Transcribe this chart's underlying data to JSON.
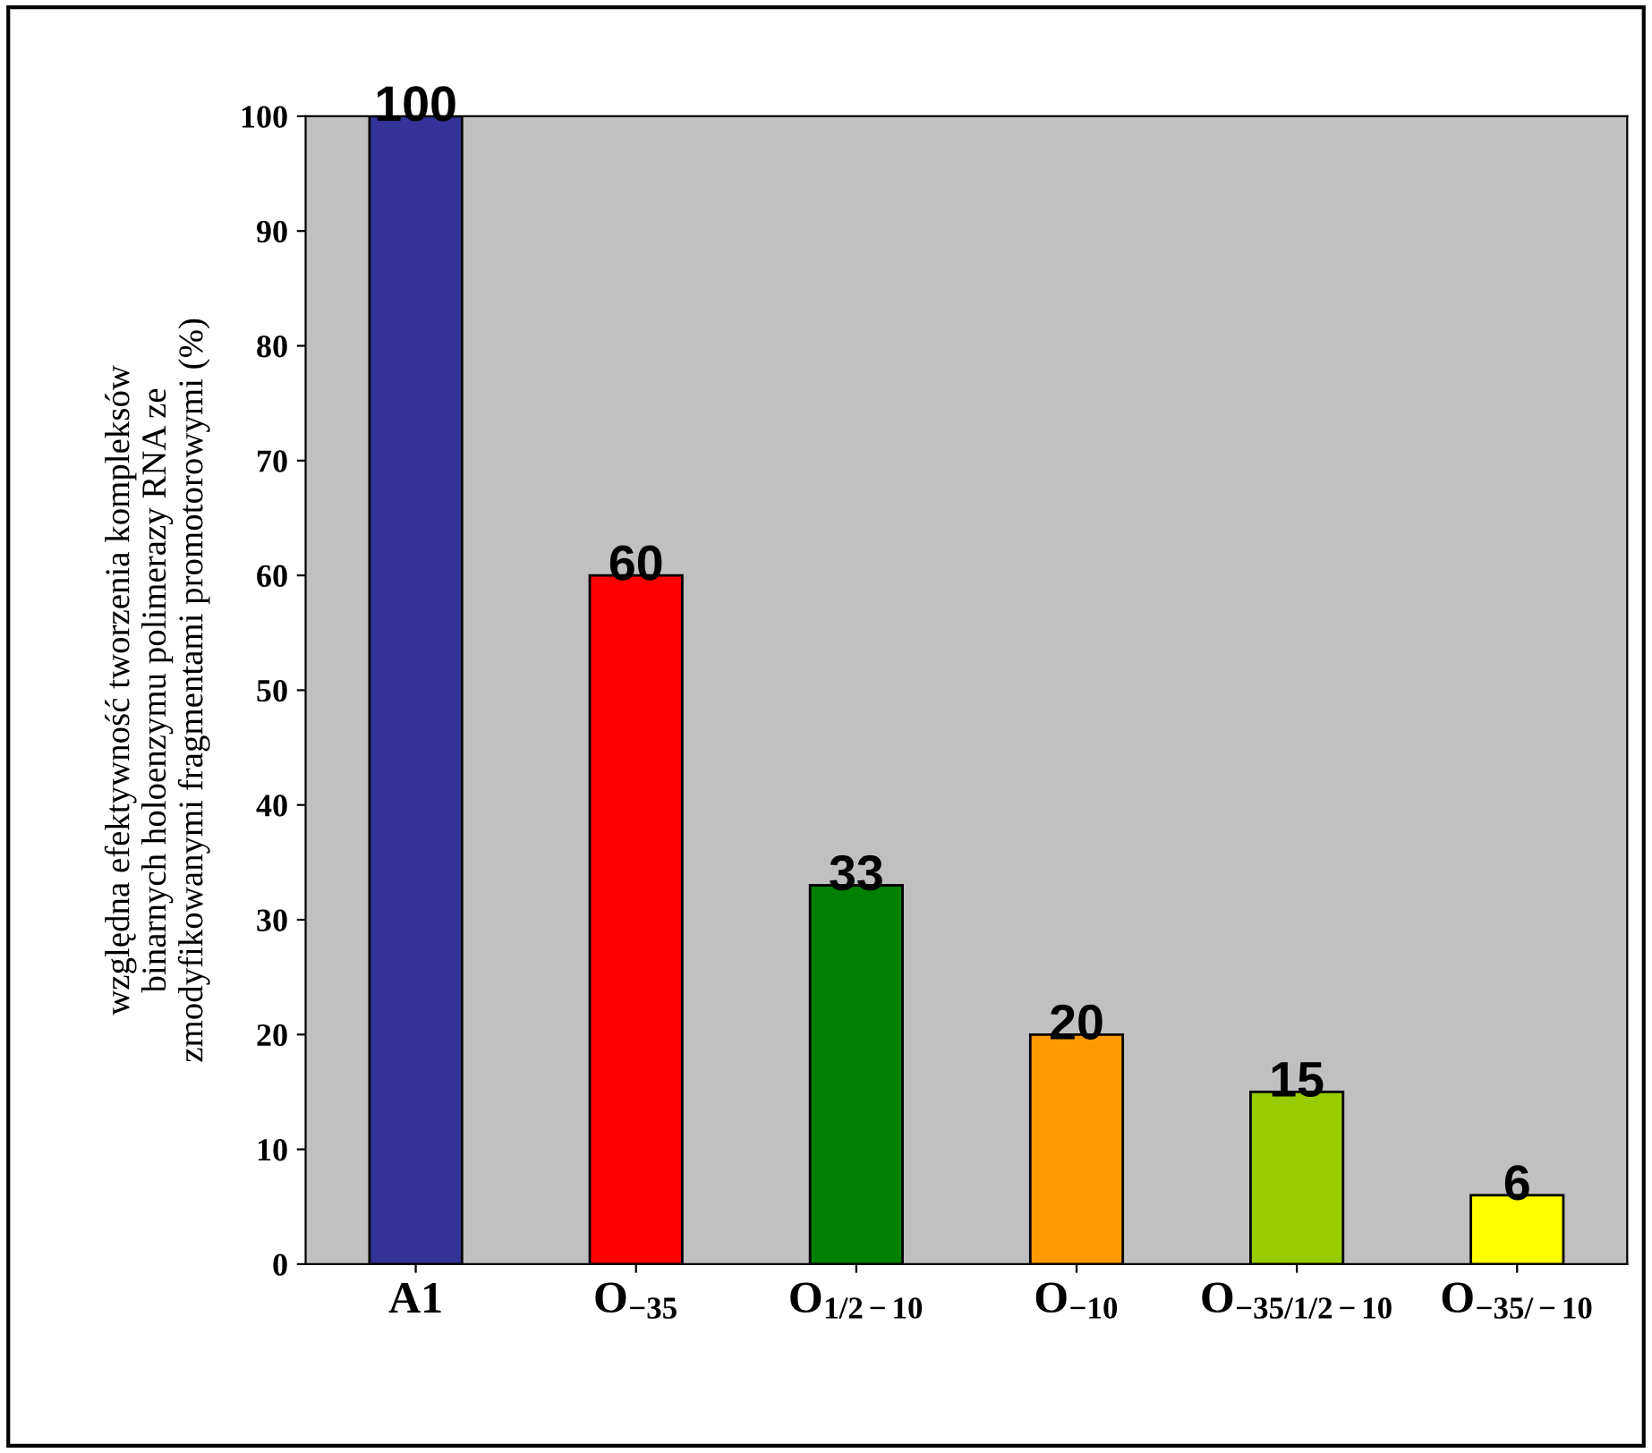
{
  "chart_data": {
    "type": "bar",
    "ylabel": "względna efektywność tworzenia kompleksów\nbinarnych holoenzymu polimerazy RNA ze\nzmodyfikowanymi fragmentami promotorowymi (%)",
    "categories": [
      "A1",
      "O$_{−35}$",
      "O$_{1/2−10}$",
      "O$_{−10}$",
      "O$_{−35/1/2−10}$",
      "O$_{−35/−10}$"
    ],
    "values": [
      100,
      60,
      33,
      20,
      15,
      6
    ],
    "colors": [
      "#333399",
      "#ff0000",
      "#008000",
      "#ff9900",
      "#99cc00",
      "#ffff00"
    ],
    "ylim": [
      0,
      100
    ],
    "yticks": [
      0,
      10,
      20,
      30,
      40,
      50,
      60,
      70,
      80,
      90,
      100
    ],
    "data_labels": true,
    "grid": false,
    "legend": false
  }
}
